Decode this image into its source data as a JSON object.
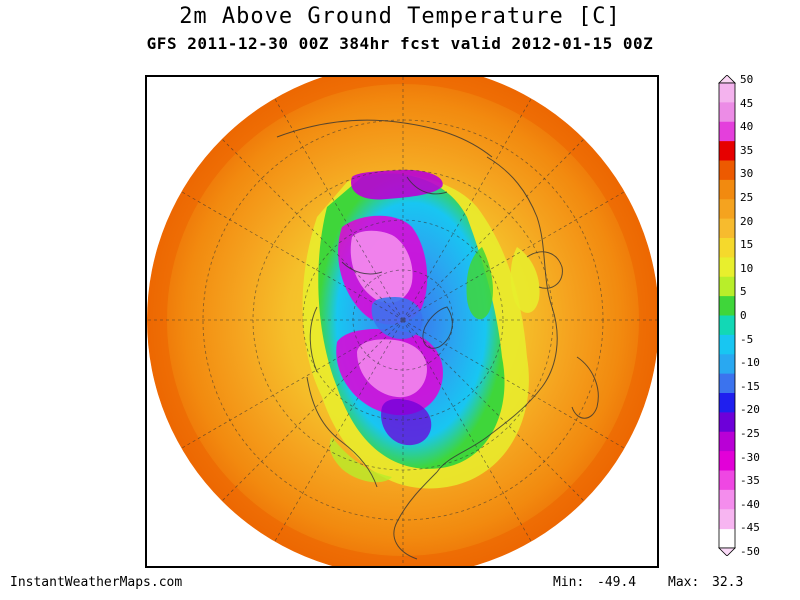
{
  "header": {
    "title": "2m Above Ground Temperature [C]",
    "subtitle": "GFS 2011-12-30 00Z 384hr fcst valid 2012-01-15 00Z"
  },
  "map": {
    "projection": "north polar stereographic",
    "variable": "2m temperature",
    "units": "C"
  },
  "colorbar": {
    "labels": [
      "50",
      "45",
      "40",
      "35",
      "30",
      "25",
      "20",
      "15",
      "10",
      "5",
      "0",
      "-5",
      "-10",
      "-15",
      "-20",
      "-25",
      "-30",
      "-35",
      "-40",
      "-45",
      "-50"
    ],
    "colors": [
      "#fbd7f5",
      "#f4b3ee",
      "#ec8ce6",
      "#e43fdc",
      "#e60000",
      "#ed5a00",
      "#f28a0f",
      "#f5a31f",
      "#f7bb2e",
      "#f5d92c",
      "#e8ef2d",
      "#b8ee2a",
      "#3fd63a",
      "#12d8b5",
      "#18c6f2",
      "#29a8f1",
      "#3b73ee",
      "#1f1fef",
      "#6d00d9",
      "#b900d6",
      "#e200d8",
      "#ef47e3",
      "#f48ded",
      "#f7b5f1",
      "#fbdaf8"
    ]
  },
  "footer": {
    "site": "InstantWeatherMaps.com",
    "min_label": "Min:",
    "min_value": "-49.4",
    "max_label": "Max:",
    "max_value": "32.3"
  }
}
